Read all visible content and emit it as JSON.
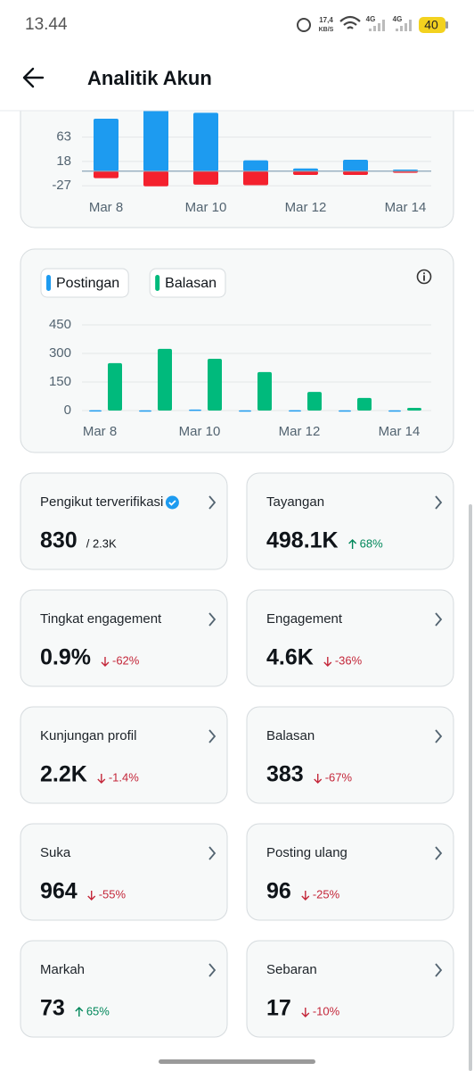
{
  "status_bar": {
    "time": "13.44",
    "speed": "17,4",
    "speed_unit": "KB/S",
    "network_1": "4G",
    "network_2": "4G",
    "battery": "40"
  },
  "header": {
    "title": "Analitik Akun"
  },
  "chart_data": [
    {
      "type": "bar",
      "categories": [
        "Mar 8",
        null,
        "Mar 10",
        null,
        "Mar 12",
        null,
        "Mar 14"
      ],
      "series": [
        {
          "color": "#1d9bf0",
          "values": [
            97,
            115,
            108,
            20,
            5,
            21,
            3
          ]
        },
        {
          "color": "#f4212e",
          "values": [
            -13,
            -28,
            -25,
            -26,
            -7,
            -7,
            -3
          ]
        }
      ],
      "ylim": [
        -40,
        130
      ],
      "yticks": [
        63,
        18,
        -27
      ],
      "grid": true,
      "stacked": true
    },
    {
      "type": "bar",
      "categories": [
        "Mar 8",
        null,
        "Mar 10",
        null,
        "Mar 12",
        null,
        "Mar 14"
      ],
      "series": [
        {
          "name": "Postingan",
          "color": "#1d9bf0",
          "values": [
            2,
            1,
            5,
            1,
            2,
            1,
            1
          ]
        },
        {
          "name": "Balasan",
          "color": "#00ba7c",
          "values": [
            249,
            324,
            272,
            202,
            98,
            66,
            14
          ]
        }
      ],
      "ylim": [
        0,
        450
      ],
      "yticks": [
        0,
        150,
        300,
        450
      ],
      "grid": true,
      "legend": "top-left"
    }
  ],
  "cards": [
    {
      "title": "Pengikut terverifikasi",
      "value": "830",
      "total": "/ 2.3K",
      "verified": true
    },
    {
      "title": "Tayangan",
      "value": "498.1K",
      "change": "68%",
      "direction": "up"
    },
    {
      "title": "Tingkat engagement",
      "value": "0.9%",
      "change": "-62%",
      "direction": "down"
    },
    {
      "title": "Engagement",
      "value": "4.6K",
      "change": "-36%",
      "direction": "down"
    },
    {
      "title": "Kunjungan profil",
      "value": "2.2K",
      "change": "-1.4%",
      "direction": "down"
    },
    {
      "title": "Balasan",
      "value": "383",
      "change": "-67%",
      "direction": "down"
    },
    {
      "title": "Suka",
      "value": "964",
      "change": "-55%",
      "direction": "down"
    },
    {
      "title": "Posting ulang",
      "value": "96",
      "change": "-25%",
      "direction": "down"
    },
    {
      "title": "Markah",
      "value": "73",
      "change": "65%",
      "direction": "up"
    },
    {
      "title": "Sebaran",
      "value": "17",
      "change": "-10%",
      "direction": "down"
    }
  ]
}
